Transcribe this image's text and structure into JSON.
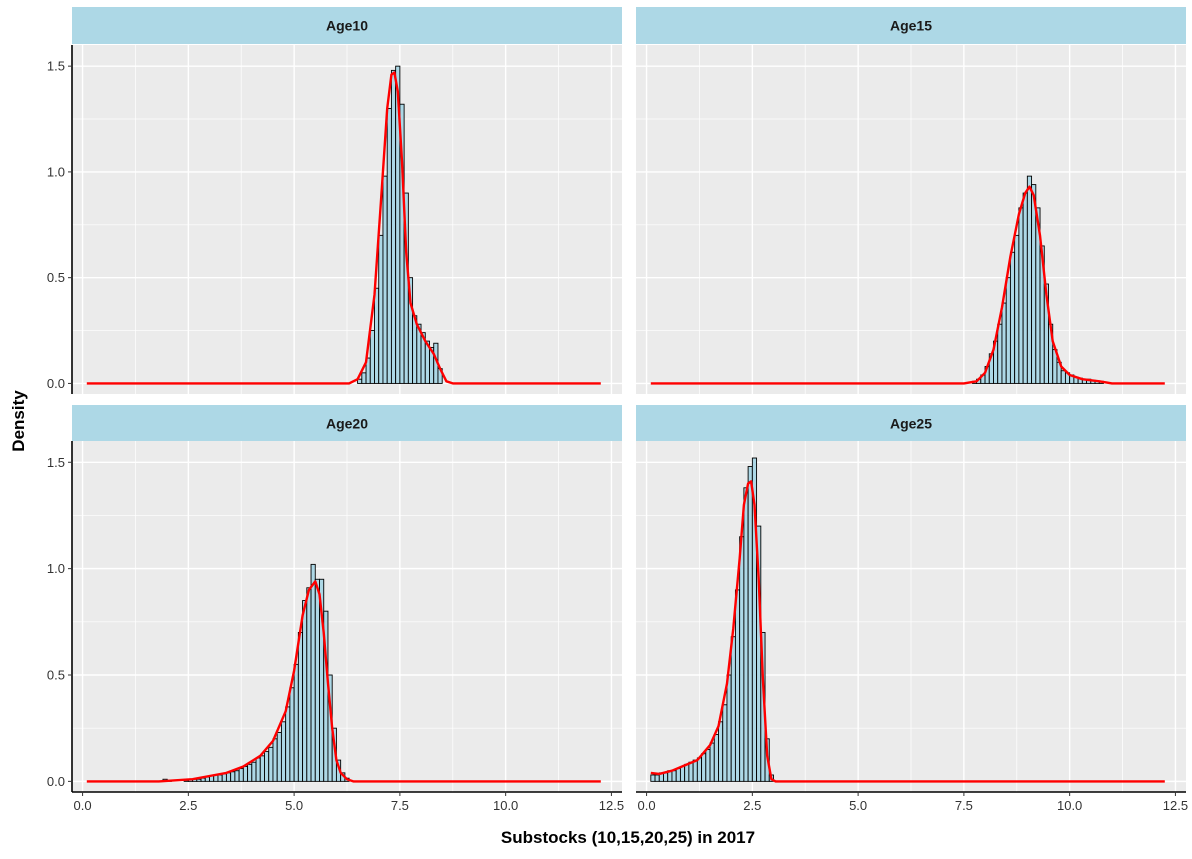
{
  "chart_data": {
    "type": "histogram-density",
    "xlabel": "Substocks (10,15,20,25) in 2017",
    "ylabel": "Density",
    "xlim": [
      -0.25,
      12.75
    ],
    "ylim": [
      -0.05,
      1.6
    ],
    "x_ticks": [
      0.0,
      2.5,
      5.0,
      7.5,
      10.0,
      12.5
    ],
    "x_tick_labels": [
      "0.0",
      "2.5",
      "5.0",
      "7.5",
      "10.0",
      "12.5"
    ],
    "y_ticks": [
      0.0,
      0.5,
      1.0,
      1.5
    ],
    "y_tick_labels": [
      "0.0",
      "0.5",
      "1.0",
      "1.5"
    ],
    "grid": true,
    "density_line_range": [
      0.1,
      12.25
    ],
    "bin_width": 0.1,
    "colors": {
      "bar_fill": "#add8e6",
      "bar_stroke": "#000000",
      "density_line": "#ff0000",
      "strip_fill": "#add8e6",
      "panel_bg": "#ebebeb",
      "grid": "#ffffff"
    },
    "panels": [
      {
        "label": "Age10",
        "bins": [
          [
            6.5,
            0.02
          ],
          [
            6.6,
            0.05
          ],
          [
            6.7,
            0.12
          ],
          [
            6.8,
            0.25
          ],
          [
            6.9,
            0.45
          ],
          [
            7.0,
            0.7
          ],
          [
            7.1,
            0.98
          ],
          [
            7.2,
            1.3
          ],
          [
            7.3,
            1.48
          ],
          [
            7.4,
            1.5
          ],
          [
            7.5,
            1.32
          ],
          [
            7.6,
            0.9
          ],
          [
            7.7,
            0.5
          ],
          [
            7.8,
            0.32
          ],
          [
            7.9,
            0.28
          ],
          [
            8.0,
            0.24
          ],
          [
            8.1,
            0.2
          ],
          [
            8.2,
            0.17
          ],
          [
            8.3,
            0.19
          ],
          [
            8.4,
            0.07
          ]
        ],
        "density": [
          [
            6.3,
            0.0
          ],
          [
            6.5,
            0.02
          ],
          [
            6.7,
            0.1
          ],
          [
            6.9,
            0.42
          ],
          [
            7.05,
            0.85
          ],
          [
            7.2,
            1.3
          ],
          [
            7.3,
            1.46
          ],
          [
            7.37,
            1.47
          ],
          [
            7.45,
            1.38
          ],
          [
            7.55,
            1.05
          ],
          [
            7.65,
            0.62
          ],
          [
            7.75,
            0.38
          ],
          [
            7.9,
            0.28
          ],
          [
            8.1,
            0.2
          ],
          [
            8.3,
            0.14
          ],
          [
            8.45,
            0.07
          ],
          [
            8.6,
            0.01
          ],
          [
            8.75,
            0.0
          ]
        ]
      },
      {
        "label": "Age15",
        "bins": [
          [
            7.7,
            0.01
          ],
          [
            7.8,
            0.02
          ],
          [
            7.9,
            0.04
          ],
          [
            8.0,
            0.08
          ],
          [
            8.1,
            0.14
          ],
          [
            8.2,
            0.2
          ],
          [
            8.3,
            0.28
          ],
          [
            8.4,
            0.38
          ],
          [
            8.5,
            0.5
          ],
          [
            8.6,
            0.62
          ],
          [
            8.7,
            0.7
          ],
          [
            8.8,
            0.83
          ],
          [
            8.9,
            0.9
          ],
          [
            9.0,
            0.98
          ],
          [
            9.1,
            0.94
          ],
          [
            9.2,
            0.83
          ],
          [
            9.3,
            0.65
          ],
          [
            9.4,
            0.47
          ],
          [
            9.5,
            0.28
          ],
          [
            9.6,
            0.16
          ],
          [
            9.7,
            0.1
          ],
          [
            9.8,
            0.06
          ],
          [
            9.9,
            0.05
          ],
          [
            10.0,
            0.04
          ],
          [
            10.1,
            0.03
          ],
          [
            10.2,
            0.025
          ],
          [
            10.3,
            0.02
          ],
          [
            10.4,
            0.02
          ],
          [
            10.5,
            0.015
          ],
          [
            10.6,
            0.01
          ],
          [
            10.7,
            0.01
          ]
        ],
        "density": [
          [
            7.5,
            0.0
          ],
          [
            7.8,
            0.01
          ],
          [
            8.0,
            0.05
          ],
          [
            8.2,
            0.16
          ],
          [
            8.4,
            0.36
          ],
          [
            8.6,
            0.6
          ],
          [
            8.8,
            0.8
          ],
          [
            8.95,
            0.9
          ],
          [
            9.05,
            0.93
          ],
          [
            9.15,
            0.89
          ],
          [
            9.3,
            0.7
          ],
          [
            9.45,
            0.42
          ],
          [
            9.6,
            0.2
          ],
          [
            9.8,
            0.08
          ],
          [
            10.0,
            0.04
          ],
          [
            10.3,
            0.02
          ],
          [
            10.7,
            0.01
          ],
          [
            11.0,
            0.0
          ]
        ]
      },
      {
        "label": "Age20",
        "bins": [
          [
            1.9,
            0.01
          ],
          [
            2.0,
            0.005
          ],
          [
            2.4,
            0.005
          ],
          [
            2.5,
            0.01
          ],
          [
            2.6,
            0.01
          ],
          [
            2.7,
            0.01
          ],
          [
            2.8,
            0.015
          ],
          [
            2.9,
            0.02
          ],
          [
            3.0,
            0.025
          ],
          [
            3.1,
            0.03
          ],
          [
            3.2,
            0.03
          ],
          [
            3.3,
            0.035
          ],
          [
            3.4,
            0.04
          ],
          [
            3.5,
            0.045
          ],
          [
            3.6,
            0.05
          ],
          [
            3.7,
            0.06
          ],
          [
            3.8,
            0.07
          ],
          [
            3.9,
            0.08
          ],
          [
            4.0,
            0.09
          ],
          [
            4.1,
            0.11
          ],
          [
            4.2,
            0.12
          ],
          [
            4.3,
            0.14
          ],
          [
            4.4,
            0.16
          ],
          [
            4.5,
            0.2
          ],
          [
            4.6,
            0.23
          ],
          [
            4.7,
            0.28
          ],
          [
            4.8,
            0.35
          ],
          [
            4.9,
            0.44
          ],
          [
            5.0,
            0.55
          ],
          [
            5.1,
            0.7
          ],
          [
            5.2,
            0.85
          ],
          [
            5.3,
            0.91
          ],
          [
            5.4,
            1.02
          ],
          [
            5.5,
            0.95
          ],
          [
            5.6,
            0.95
          ],
          [
            5.7,
            0.8
          ],
          [
            5.8,
            0.5
          ],
          [
            5.9,
            0.25
          ],
          [
            6.0,
            0.1
          ],
          [
            6.1,
            0.04
          ],
          [
            6.2,
            0.015
          ]
        ],
        "density": [
          [
            1.8,
            0.0
          ],
          [
            2.2,
            0.005
          ],
          [
            2.6,
            0.01
          ],
          [
            3.0,
            0.025
          ],
          [
            3.4,
            0.04
          ],
          [
            3.8,
            0.07
          ],
          [
            4.2,
            0.12
          ],
          [
            4.5,
            0.19
          ],
          [
            4.8,
            0.33
          ],
          [
            5.0,
            0.52
          ],
          [
            5.2,
            0.78
          ],
          [
            5.35,
            0.9
          ],
          [
            5.5,
            0.94
          ],
          [
            5.6,
            0.88
          ],
          [
            5.7,
            0.7
          ],
          [
            5.8,
            0.46
          ],
          [
            5.9,
            0.25
          ],
          [
            6.0,
            0.1
          ],
          [
            6.1,
            0.04
          ],
          [
            6.25,
            0.01
          ],
          [
            6.4,
            0.0
          ]
        ]
      },
      {
        "label": "Age25",
        "bins": [
          [
            0.1,
            0.03
          ],
          [
            0.2,
            0.03
          ],
          [
            0.3,
            0.04
          ],
          [
            0.4,
            0.04
          ],
          [
            0.5,
            0.05
          ],
          [
            0.6,
            0.05
          ],
          [
            0.7,
            0.06
          ],
          [
            0.8,
            0.07
          ],
          [
            0.9,
            0.08
          ],
          [
            1.0,
            0.09
          ],
          [
            1.1,
            0.1
          ],
          [
            1.2,
            0.11
          ],
          [
            1.3,
            0.13
          ],
          [
            1.4,
            0.15
          ],
          [
            1.5,
            0.18
          ],
          [
            1.6,
            0.22
          ],
          [
            1.7,
            0.28
          ],
          [
            1.8,
            0.36
          ],
          [
            1.9,
            0.5
          ],
          [
            2.0,
            0.68
          ],
          [
            2.1,
            0.9
          ],
          [
            2.2,
            1.15
          ],
          [
            2.3,
            1.38
          ],
          [
            2.4,
            1.48
          ],
          [
            2.5,
            1.52
          ],
          [
            2.6,
            1.2
          ],
          [
            2.7,
            0.7
          ],
          [
            2.8,
            0.2
          ],
          [
            2.9,
            0.03
          ]
        ],
        "density": [
          [
            0.1,
            0.04
          ],
          [
            0.3,
            0.035
          ],
          [
            0.6,
            0.05
          ],
          [
            0.9,
            0.075
          ],
          [
            1.2,
            0.1
          ],
          [
            1.5,
            0.17
          ],
          [
            1.7,
            0.26
          ],
          [
            1.9,
            0.46
          ],
          [
            2.05,
            0.72
          ],
          [
            2.2,
            1.05
          ],
          [
            2.3,
            1.3
          ],
          [
            2.4,
            1.4
          ],
          [
            2.47,
            1.41
          ],
          [
            2.55,
            1.3
          ],
          [
            2.65,
            0.95
          ],
          [
            2.75,
            0.48
          ],
          [
            2.85,
            0.12
          ],
          [
            2.95,
            0.01
          ],
          [
            3.05,
            0.0
          ]
        ]
      }
    ]
  }
}
